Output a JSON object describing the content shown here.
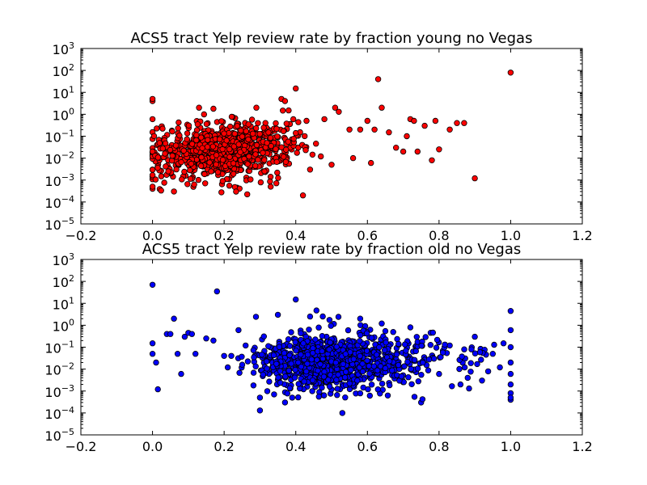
{
  "chart_data": [
    {
      "type": "scatter",
      "title": "ACS5 tract Yelp review rate by fraction young no Vegas",
      "xlabel": "",
      "ylabel": "",
      "xlim": [
        -0.2,
        1.2
      ],
      "ylim_log10": [
        -5,
        3
      ],
      "y_scale": "log",
      "grid": false,
      "marker_color": "#ff0000",
      "marker_edge": "#000000",
      "x_ticks": [
        "-0.2",
        "0.0",
        "0.2",
        "0.4",
        "0.6",
        "0.8",
        "1.0",
        "1.2"
      ],
      "y_ticks": [
        {
          "base": "10",
          "exp": "-5"
        },
        {
          "base": "10",
          "exp": "-4"
        },
        {
          "base": "10",
          "exp": "-3"
        },
        {
          "base": "10",
          "exp": "-2"
        },
        {
          "base": "10",
          "exp": "-1"
        },
        {
          "base": "10",
          "exp": "0"
        },
        {
          "base": "10",
          "exp": "1"
        },
        {
          "base": "10",
          "exp": "2"
        },
        {
          "base": "10",
          "exp": "3"
        }
      ],
      "points": [
        [
          0.0,
          4.0
        ],
        [
          0.0,
          5.0
        ],
        [
          0.0,
          0.6
        ],
        [
          0.0,
          0.0004
        ],
        [
          0.0,
          0.0005
        ],
        [
          0.0,
          0.003
        ],
        [
          0.36,
          5.0
        ],
        [
          0.37,
          4.0
        ],
        [
          0.4,
          15.0
        ],
        [
          0.38,
          1.5
        ],
        [
          0.29,
          2.0
        ],
        [
          0.13,
          2.0
        ],
        [
          0.17,
          1.8
        ],
        [
          0.43,
          0.5
        ],
        [
          0.48,
          0.6
        ],
        [
          0.51,
          2.0
        ],
        [
          0.52,
          1.3
        ],
        [
          0.55,
          0.2
        ],
        [
          0.58,
          0.2
        ],
        [
          0.6,
          0.5
        ],
        [
          0.62,
          0.2
        ],
        [
          0.63,
          40.0
        ],
        [
          0.64,
          2.0
        ],
        [
          0.66,
          0.15
        ],
        [
          0.68,
          0.03
        ],
        [
          0.7,
          0.02
        ],
        [
          0.72,
          0.6
        ],
        [
          0.73,
          0.5
        ],
        [
          0.74,
          0.02
        ],
        [
          0.76,
          0.3
        ],
        [
          0.79,
          0.5
        ],
        [
          0.8,
          0.025
        ],
        [
          0.85,
          0.4
        ],
        [
          0.87,
          0.4
        ],
        [
          0.9,
          0.0012
        ],
        [
          1.0,
          80.0
        ],
        [
          0.56,
          0.01
        ],
        [
          0.44,
          0.003
        ],
        [
          0.42,
          0.0002
        ],
        [
          0.33,
          0.0005
        ],
        [
          0.24,
          0.0004
        ],
        [
          0.06,
          0.0003
        ],
        [
          0.61,
          0.006
        ],
        [
          0.71,
          0.1
        ],
        [
          0.83,
          0.2
        ],
        [
          0.78,
          0.008
        ],
        [
          0.47,
          0.012
        ],
        [
          0.5,
          0.005
        ]
      ],
      "cloud": [
        {
          "count": 700,
          "x_center": 0.19,
          "x_spread": 0.085,
          "y_log_center": -1.7,
          "y_log_spread": 0.62
        },
        {
          "count": 120,
          "x_center": 0.33,
          "x_spread": 0.06,
          "y_log_center": -1.3,
          "y_log_spread": 0.55
        },
        {
          "count": 35,
          "x_center": 0.02,
          "x_spread": 0.015,
          "y_log_center": -1.8,
          "y_log_spread": 0.6
        }
      ]
    },
    {
      "type": "scatter",
      "title": "ACS5 tract Yelp review rate by fraction old no Vegas",
      "xlabel": "",
      "ylabel": "",
      "xlim": [
        -0.2,
        1.2
      ],
      "ylim_log10": [
        -5,
        3
      ],
      "y_scale": "log",
      "grid": false,
      "marker_color": "#0000ff",
      "marker_edge": "#000000",
      "x_ticks": [
        "-0.2",
        "0.0",
        "0.2",
        "0.4",
        "0.6",
        "0.8",
        "1.0",
        "1.2"
      ],
      "y_ticks": [
        {
          "base": "10",
          "exp": "-5"
        },
        {
          "base": "10",
          "exp": "-4"
        },
        {
          "base": "10",
          "exp": "-3"
        },
        {
          "base": "10",
          "exp": "-2"
        },
        {
          "base": "10",
          "exp": "-1"
        },
        {
          "base": "10",
          "exp": "0"
        },
        {
          "base": "10",
          "exp": "1"
        },
        {
          "base": "10",
          "exp": "2"
        },
        {
          "base": "10",
          "exp": "3"
        }
      ],
      "points": [
        [
          0.0,
          70.0
        ],
        [
          0.18,
          35.0
        ],
        [
          0.0,
          0.15
        ],
        [
          0.0,
          0.05
        ],
        [
          0.01,
          0.02
        ],
        [
          0.015,
          0.0012
        ],
        [
          0.04,
          0.4
        ],
        [
          0.05,
          0.4
        ],
        [
          0.06,
          2.0
        ],
        [
          0.07,
          0.05
        ],
        [
          0.08,
          0.006
        ],
        [
          0.09,
          0.3
        ],
        [
          0.1,
          0.45
        ],
        [
          0.11,
          0.4
        ],
        [
          0.12,
          0.05
        ],
        [
          0.15,
          0.25
        ],
        [
          0.17,
          0.2
        ],
        [
          0.2,
          0.04
        ],
        [
          0.21,
          0.012
        ],
        [
          0.22,
          0.04
        ],
        [
          0.24,
          0.6
        ],
        [
          0.26,
          0.12
        ],
        [
          0.3,
          0.00013
        ],
        [
          0.3,
          0.0005
        ],
        [
          0.35,
          3.0
        ],
        [
          0.37,
          0.0003
        ],
        [
          0.39,
          0.0005
        ],
        [
          0.4,
          15.0
        ],
        [
          0.44,
          2.5
        ],
        [
          0.53,
          0.0001
        ],
        [
          0.58,
          2.0
        ],
        [
          0.64,
          1.2
        ],
        [
          0.72,
          0.8
        ],
        [
          0.75,
          0.0003
        ],
        [
          0.8,
          0.006
        ],
        [
          0.83,
          0.12
        ],
        [
          0.86,
          0.002
        ],
        [
          0.88,
          0.004
        ],
        [
          0.9,
          0.3
        ],
        [
          0.92,
          0.003
        ],
        [
          0.95,
          0.05
        ],
        [
          0.98,
          0.15
        ],
        [
          1.0,
          4.5
        ],
        [
          1.0,
          0.6
        ],
        [
          1.0,
          0.1
        ],
        [
          1.0,
          0.02
        ],
        [
          1.0,
          0.006
        ],
        [
          1.0,
          0.002
        ],
        [
          1.0,
          0.0008
        ],
        [
          1.0,
          0.0004
        ],
        [
          1.0,
          0.0005
        ],
        [
          0.97,
          0.012
        ]
      ],
      "cloud": [
        {
          "count": 820,
          "x_center": 0.5,
          "x_spread": 0.095,
          "y_log_center": -1.65,
          "y_log_spread": 0.65
        },
        {
          "count": 110,
          "x_center": 0.75,
          "x_spread": 0.08,
          "y_log_center": -1.5,
          "y_log_spread": 0.55
        },
        {
          "count": 40,
          "x_center": 0.33,
          "x_spread": 0.03,
          "y_log_center": -1.7,
          "y_log_spread": 0.6
        }
      ]
    }
  ]
}
